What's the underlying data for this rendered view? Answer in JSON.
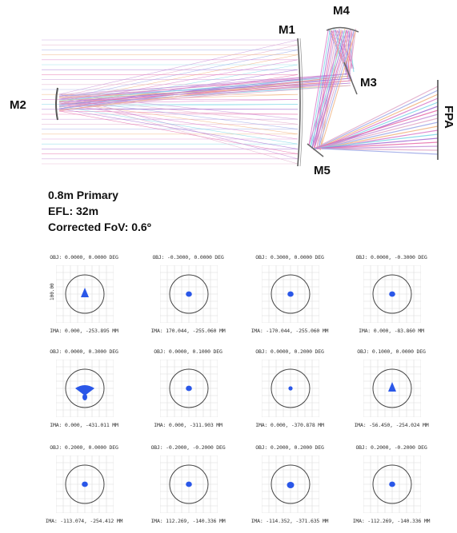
{
  "diagram": {
    "labels": {
      "m1": "M1",
      "m2": "M2",
      "m3": "M3",
      "m4": "M4",
      "m5": "M5",
      "fpa": "FPA"
    },
    "ray_colors": [
      "#c58fd6",
      "#e0a6c6",
      "#9aa6e6",
      "#f0b07a",
      "#d97ac9",
      "#7ad6e6",
      "#a36bd1",
      "#e66aa8"
    ]
  },
  "specs": {
    "primary": "0.8m Primary",
    "efl": "EFL: 32m",
    "fov": "Corrected FoV: 0.6º"
  },
  "spot_diagrams": {
    "scale_label": "100.00",
    "spot_color": "#2a57e8",
    "cells": [
      {
        "obj": "OBJ: 0.0000, 0.0000 DEG",
        "ima": "IMA: 0.000, -253.895 MM"
      },
      {
        "obj": "OBJ: -0.3000, 0.0000 DEG",
        "ima": "IMA: 170.044, -255.060 MM"
      },
      {
        "obj": "OBJ: 0.3000, 0.0000 DEG",
        "ima": "IMA: -170.044, -255.060 MM"
      },
      {
        "obj": "OBJ: 0.0000, -0.3000 DEG",
        "ima": "IMA: 0.000, -83.860 MM"
      },
      {
        "obj": "OBJ: 0.0000, 0.3000 DEG",
        "ima": "IMA: 0.000, -431.011 MM"
      },
      {
        "obj": "OBJ: 0.0000, 0.1000 DEG",
        "ima": "IMA: 0.000, -311.903 MM"
      },
      {
        "obj": "OBJ: 0.0000, 0.2000 DEG",
        "ima": "IMA: 0.000, -370.878 MM"
      },
      {
        "obj": "OBJ: 0.1000, 0.0000 DEG",
        "ima": "IMA: -56.450, -254.024 MM"
      },
      {
        "obj": "OBJ: 0.2000, 0.0000 DEG",
        "ima": "IMA: -113.074, -254.412 MM"
      },
      {
        "obj": "OBJ: -0.2000, -0.2000 DEG",
        "ima": "IMA: 112.269, -140.336 MM"
      },
      {
        "obj": "OBJ: 0.2000, 0.2000 DEG",
        "ima": "IMA: -114.352, -371.635 MM"
      },
      {
        "obj": "OBJ: 0.2000, -0.2000 DEG",
        "ima": "IMA: -112.269, -140.336 MM"
      }
    ]
  }
}
